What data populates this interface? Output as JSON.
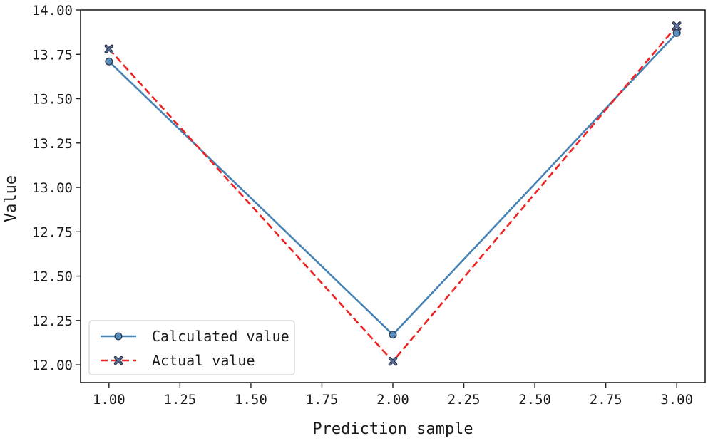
{
  "chart_data": {
    "type": "line",
    "title": "",
    "xlabel": "Prediction sample",
    "ylabel": "Value",
    "xlim": [
      0.9,
      3.1
    ],
    "ylim": [
      11.9,
      14.0
    ],
    "xticks": [
      1.0,
      1.25,
      1.5,
      1.75,
      2.0,
      2.25,
      2.5,
      2.75,
      3.0
    ],
    "xtick_labels": [
      "1.00",
      "1.25",
      "1.50",
      "1.75",
      "2.00",
      "2.25",
      "2.50",
      "2.75",
      "3.00"
    ],
    "yticks": [
      12.0,
      12.25,
      12.5,
      12.75,
      13.0,
      13.25,
      13.5,
      13.75,
      14.0
    ],
    "ytick_labels": [
      "12.00",
      "12.25",
      "12.50",
      "12.75",
      "13.00",
      "13.25",
      "13.50",
      "13.75",
      "14.00"
    ],
    "grid": false,
    "legend_position": "lower-left",
    "series": [
      {
        "name": "Calculated value",
        "x": [
          1,
          2,
          3
        ],
        "values": [
          13.71,
          12.17,
          13.87
        ],
        "color": "#4682b4",
        "marker_fill": "#5b8fbd",
        "marker_edge": "#2b3f55",
        "linestyle": "solid",
        "marker": "circle"
      },
      {
        "name": "Actual value",
        "x": [
          1,
          2,
          3
        ],
        "values": [
          13.78,
          12.02,
          13.91
        ],
        "color": "#ee2222",
        "marker_fill": "#5a6f9a",
        "marker_edge": "#2a2f45",
        "linestyle": "dashed",
        "marker": "x"
      }
    ]
  }
}
